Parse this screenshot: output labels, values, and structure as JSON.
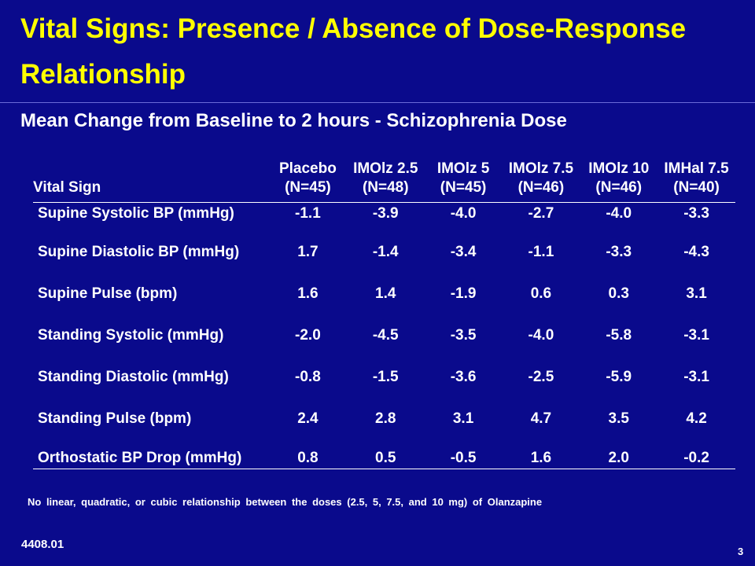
{
  "slide": {
    "title": "Vital Signs: Presence / Absence of Dose-Response Relationship",
    "subtitle": "Mean Change from Baseline to 2 hours - Schizophrenia Dose",
    "footnote": "No linear, quadratic, or cubic relationship between the doses (2.5, 5, 7.5, and 10 mg) of Olanzapine",
    "code": "4408.01",
    "page_number": "3"
  },
  "table": {
    "row_header": "Vital Sign",
    "columns": [
      {
        "name": "Placebo",
        "n": "(N=45)"
      },
      {
        "name": "IMOlz 2.5",
        "n": "(N=48)"
      },
      {
        "name": "IMOlz 5",
        "n": "(N=45)"
      },
      {
        "name": "IMOlz 7.5",
        "n": "(N=46)"
      },
      {
        "name": "IMOlz 10",
        "n": "(N=46)"
      },
      {
        "name": "IMHal 7.5",
        "n": "(N=40)"
      }
    ],
    "rows": [
      {
        "label": "Supine Systolic BP (mmHg)",
        "values": [
          "-1.1",
          "-3.9",
          "-4.0",
          "-2.7",
          "-4.0",
          "-3.3"
        ]
      },
      {
        "label": "Supine Diastolic BP (mmHg)",
        "values": [
          "1.7",
          "-1.4",
          "-3.4",
          "-1.1",
          "-3.3",
          "-4.3"
        ]
      },
      {
        "label": "Supine Pulse (bpm)",
        "values": [
          "1.6",
          "1.4",
          "-1.9",
          "0.6",
          "0.3",
          "3.1"
        ]
      },
      {
        "label": "Standing Systolic (mmHg)",
        "values": [
          "-2.0",
          "-4.5",
          "-3.5",
          "-4.0",
          "-5.8",
          "-3.1"
        ]
      },
      {
        "label": "Standing Diastolic (mmHg)",
        "values": [
          "-0.8",
          "-1.5",
          "-3.6",
          "-2.5",
          "-5.9",
          "-3.1"
        ]
      },
      {
        "label": "Standing Pulse (bpm)",
        "values": [
          "2.4",
          "2.8",
          "3.1",
          "4.7",
          "3.5",
          "4.2"
        ]
      },
      {
        "label": "Orthostatic BP Drop (mmHg)",
        "values": [
          "0.8",
          "0.5",
          "-0.5",
          "1.6",
          "2.0",
          "-0.2"
        ]
      }
    ]
  },
  "colors": {
    "background": "#0a0a8c",
    "title": "#ffff00",
    "text": "#ffffff"
  }
}
